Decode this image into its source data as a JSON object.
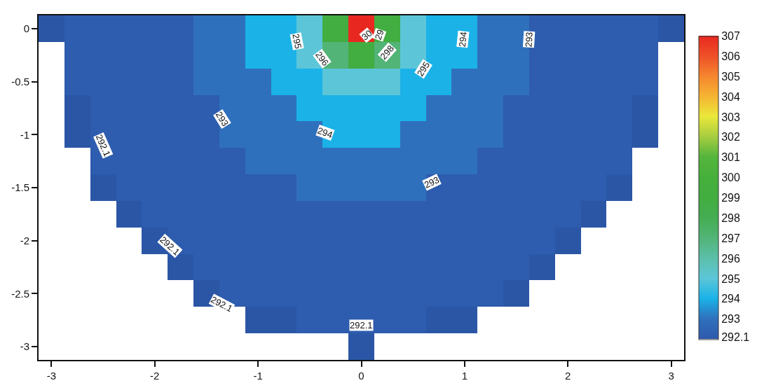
{
  "chart_data": {
    "type": "heatmap",
    "categories": [
      "-3",
      null,
      null,
      null,
      "-2",
      null,
      null,
      null,
      "-1",
      null,
      null,
      null,
      "0",
      null,
      null,
      null,
      "1",
      null,
      null,
      null,
      "2",
      null,
      null,
      null,
      "3"
    ],
    "y_categories": [
      "0",
      null,
      "-0.5",
      null,
      "-1",
      null,
      "-1.5",
      null,
      "-2",
      null,
      "-2.5",
      null,
      "-3"
    ],
    "cells": [
      [
        292,
        292.1,
        292.1,
        292.1,
        292.1,
        292.1,
        293,
        293,
        294,
        294,
        295,
        299,
        307,
        299,
        295,
        294,
        294,
        293,
        293,
        292.1,
        292.1,
        292.1,
        292.1,
        292.1,
        292
      ],
      [
        null,
        292.1,
        292.1,
        292.1,
        292.1,
        292.1,
        293,
        293,
        294,
        294,
        295,
        297,
        299,
        297,
        295,
        294,
        294,
        293,
        293,
        292.1,
        292.1,
        292.1,
        292.1,
        292.1,
        null
      ],
      [
        null,
        292.1,
        292.1,
        292.1,
        292.1,
        292.1,
        293,
        293,
        293,
        294,
        294,
        295,
        295,
        295,
        294,
        294,
        293,
        293,
        293,
        292.1,
        292.1,
        292.1,
        292.1,
        292.1,
        null
      ],
      [
        null,
        292,
        292.1,
        292.1,
        292.1,
        292.1,
        292.1,
        293,
        293,
        293,
        294,
        294,
        294,
        294,
        294,
        293,
        293,
        293,
        292.1,
        292.1,
        292.1,
        292.1,
        292.1,
        292,
        null
      ],
      [
        null,
        292,
        292.1,
        292.1,
        292.1,
        292.1,
        292.1,
        293,
        293,
        293,
        293,
        294,
        294,
        294,
        293,
        293,
        293,
        293,
        292.1,
        292.1,
        292.1,
        292.1,
        292.1,
        292,
        null
      ],
      [
        null,
        null,
        292.1,
        292.1,
        292.1,
        292.1,
        292.1,
        292.1,
        293,
        293,
        293,
        293,
        293,
        293,
        293,
        293,
        293,
        292.1,
        292.1,
        292.1,
        292.1,
        292.1,
        292.1,
        null,
        null
      ],
      [
        null,
        null,
        292,
        292.1,
        292.1,
        292.1,
        292.1,
        292.1,
        292.1,
        292.1,
        293,
        293,
        293,
        293,
        293,
        292.1,
        292.1,
        292.1,
        292.1,
        292.1,
        292.1,
        292.1,
        292,
        null,
        null
      ],
      [
        null,
        null,
        null,
        292,
        292.1,
        292.1,
        292.1,
        292.1,
        292.1,
        292.1,
        292.1,
        292.1,
        292.1,
        292.1,
        292.1,
        292.1,
        292.1,
        292.1,
        292.1,
        292.1,
        292.1,
        292,
        null,
        null,
        null
      ],
      [
        null,
        null,
        null,
        null,
        292,
        292.1,
        292.1,
        292.1,
        292.1,
        292.1,
        292.1,
        292.1,
        292.1,
        292.1,
        292.1,
        292.1,
        292.1,
        292.1,
        292.1,
        292.1,
        292,
        null,
        null,
        null,
        null
      ],
      [
        null,
        null,
        null,
        null,
        null,
        292,
        292.1,
        292.1,
        292.1,
        292.1,
        292.1,
        292.1,
        292.1,
        292.1,
        292.1,
        292.1,
        292.1,
        292.1,
        292.1,
        292,
        null,
        null,
        null,
        null,
        null
      ],
      [
        null,
        null,
        null,
        null,
        null,
        null,
        292,
        292.1,
        292.1,
        292.1,
        292.1,
        292.1,
        292.1,
        292.1,
        292.1,
        292.1,
        292.1,
        292.1,
        292,
        null,
        null,
        null,
        null,
        null,
        null
      ],
      [
        null,
        null,
        null,
        null,
        null,
        null,
        null,
        null,
        292,
        292,
        292.1,
        292.1,
        292.1,
        292.1,
        292.1,
        292,
        292,
        null,
        null,
        null,
        null,
        null,
        null,
        null,
        null
      ],
      [
        null,
        null,
        null,
        null,
        null,
        null,
        null,
        null,
        null,
        null,
        null,
        null,
        292,
        null,
        null,
        null,
        null,
        null,
        null,
        null,
        null,
        null,
        null,
        null,
        null
      ]
    ],
    "clim": [
      292,
      307
    ],
    "cticks": [
      292.1,
      293,
      294,
      295,
      296,
      297,
      298,
      299,
      300,
      301,
      302,
      303,
      304,
      305,
      306,
      307
    ],
    "colors": [
      "#2b56a6",
      "#2e5cae",
      "#2f70bc",
      "#1bb2e8",
      "#5cc6d8",
      "#5cbfaa",
      "#52b477",
      "#44ad52",
      "#42ad40",
      "#46b03c",
      "#54b53c",
      "#a6cc40",
      "#eae83a",
      "#f5b432",
      "#f5862e",
      "#ee5028",
      "#e82820"
    ],
    "annotations": [
      "295",
      "296",
      "30",
      "29",
      "298",
      "294",
      "293",
      "295",
      "293",
      "294",
      "293",
      "292.1",
      "292.1",
      "292.1",
      "292.1"
    ]
  }
}
